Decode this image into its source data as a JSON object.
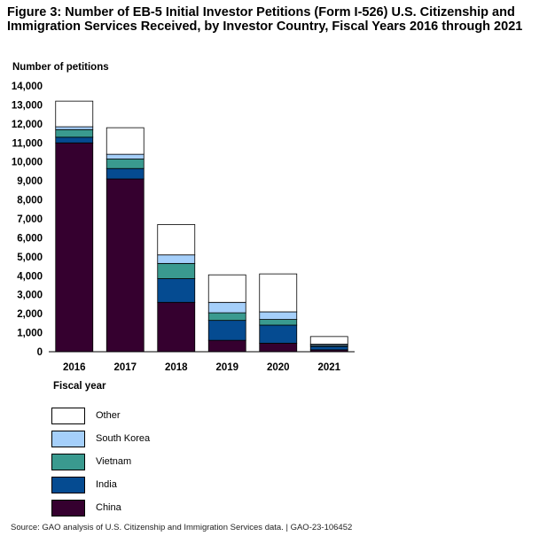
{
  "title": "Figure 3: Number of EB-5 Initial Investor Petitions (Form I-526) U.S. Citizenship and Immigration Services Received, by Investor Country, Fiscal Years 2016 through 2021",
  "source": "Source: GAO analysis of U.S. Citizenship and Immigration Services data.  |  GAO-23-106452",
  "chart_data": {
    "type": "bar",
    "stacked": true,
    "title": "Figure 3: Number of EB-5 Initial Investor Petitions (Form I-526) U.S. Citizenship and Immigration Services Received, by Investor Country, Fiscal Years 2016 through 2021",
    "xlabel": "Fiscal year",
    "ylabel": "Number of petitions",
    "ylim": [
      0,
      14000
    ],
    "yticks": [
      0,
      1000,
      2000,
      3000,
      4000,
      5000,
      6000,
      7000,
      8000,
      9000,
      10000,
      11000,
      12000,
      13000,
      14000
    ],
    "ytick_labels": [
      "0",
      "1,000",
      "2,000",
      "3,000",
      "4,000",
      "5,000",
      "6,000",
      "7,000",
      "8,000",
      "9,000",
      "10,000",
      "11,000",
      "12,000",
      "13,000",
      "14,000"
    ],
    "categories": [
      "2016",
      "2017",
      "2018",
      "2019",
      "2020",
      "2021"
    ],
    "legend_position": "bottom-left",
    "series": [
      {
        "name": "China",
        "color": "#35002f",
        "values": [
          11000,
          9100,
          2600,
          600,
          450,
          100
        ]
      },
      {
        "name": "India",
        "color": "#054b91",
        "values": [
          300,
          550,
          1250,
          1050,
          950,
          180
        ]
      },
      {
        "name": "Vietnam",
        "color": "#3a9a8f",
        "values": [
          400,
          500,
          800,
          400,
          300,
          50
        ]
      },
      {
        "name": "South Korea",
        "color": "#a5cffa",
        "values": [
          150,
          250,
          450,
          550,
          400,
          70
        ]
      },
      {
        "name": "Other",
        "color": "#ffffff",
        "values": [
          1350,
          1400,
          1600,
          1450,
          2000,
          400
        ]
      }
    ]
  }
}
